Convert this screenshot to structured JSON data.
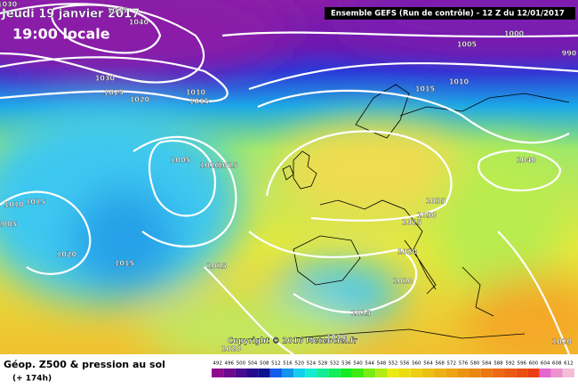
{
  "header": {
    "date": "Jeudi 19 janvier 2017",
    "time": "19:00 locale",
    "run": "Ensemble GEFS  (Run de contrôle)  - 12 Z du 12/01/2017"
  },
  "isobar_labels": [
    1030,
    1035,
    1040,
    1030,
    1025,
    1020,
    1010,
    1015,
    1005,
    1000,
    990,
    1015,
    1010,
    1005,
    1010,
    1015,
    1040,
    1035,
    1030,
    1025,
    1010,
    1015,
    1005,
    1020,
    1015,
    1015,
    1020,
    1010,
    1015,
    1010,
    1020,
    1020
  ],
  "copyright": "Copyright © 2016 Meteociel.fr",
  "footer": {
    "title": "Géop. Z500 & pression au sol",
    "lead": "(+ 174h)"
  },
  "scale": [
    492,
    496,
    500,
    504,
    508,
    512,
    516,
    520,
    524,
    528,
    532,
    536,
    540,
    544,
    548,
    552,
    556,
    560,
    564,
    568,
    572,
    576,
    580,
    584,
    588,
    592,
    596,
    600,
    604,
    608,
    612
  ]
}
